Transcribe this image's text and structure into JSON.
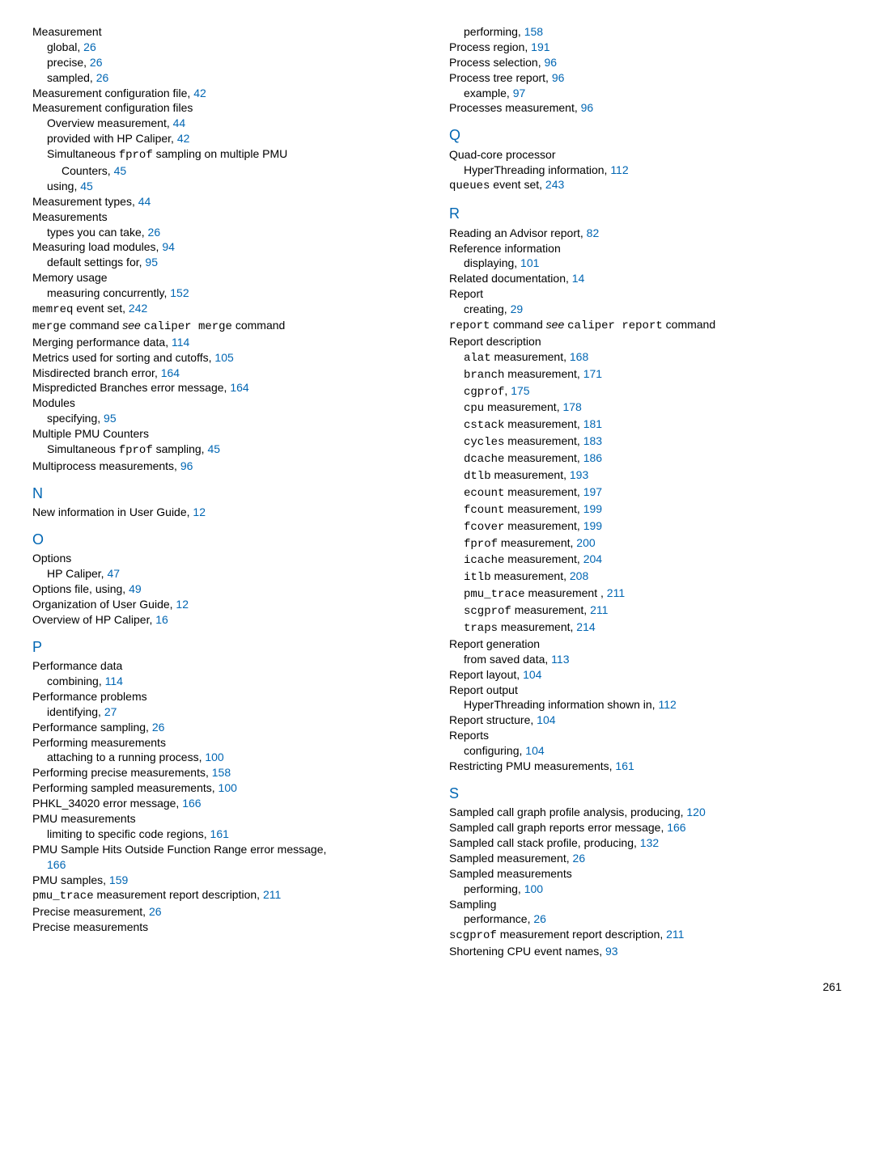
{
  "left": [
    {
      "t": "e",
      "cls": "entry",
      "parts": [
        {
          "txt": "Measurement"
        }
      ]
    },
    {
      "t": "e",
      "cls": "sub1",
      "parts": [
        {
          "txt": "global, "
        },
        {
          "link": "26"
        }
      ]
    },
    {
      "t": "e",
      "cls": "sub1",
      "parts": [
        {
          "txt": "precise, "
        },
        {
          "link": "26"
        }
      ]
    },
    {
      "t": "e",
      "cls": "sub1",
      "parts": [
        {
          "txt": "sampled, "
        },
        {
          "link": "26"
        }
      ]
    },
    {
      "t": "e",
      "cls": "entry",
      "parts": [
        {
          "txt": "Measurement configuration file, "
        },
        {
          "link": "42"
        }
      ]
    },
    {
      "t": "e",
      "cls": "entry",
      "parts": [
        {
          "txt": "Measurement configuration files"
        }
      ]
    },
    {
      "t": "e",
      "cls": "sub1",
      "parts": [
        {
          "txt": "Overview measurement, "
        },
        {
          "link": "44"
        }
      ]
    },
    {
      "t": "e",
      "cls": "sub1",
      "parts": [
        {
          "txt": "provided with HP Caliper, "
        },
        {
          "link": "42"
        }
      ]
    },
    {
      "t": "e",
      "cls": "sub1",
      "parts": [
        {
          "txt": "Simultaneous "
        },
        {
          "mono": "fprof"
        },
        {
          "txt": " sampling on multiple PMU"
        }
      ]
    },
    {
      "t": "e",
      "cls": "sub2",
      "parts": [
        {
          "txt": "Counters, "
        },
        {
          "link": "45"
        }
      ]
    },
    {
      "t": "e",
      "cls": "sub1",
      "parts": [
        {
          "txt": "using, "
        },
        {
          "link": "45"
        }
      ]
    },
    {
      "t": "e",
      "cls": "entry",
      "parts": [
        {
          "txt": "Measurement types, "
        },
        {
          "link": "44"
        }
      ]
    },
    {
      "t": "e",
      "cls": "entry",
      "parts": [
        {
          "txt": "Measurements"
        }
      ]
    },
    {
      "t": "e",
      "cls": "sub1",
      "parts": [
        {
          "txt": "types you can take, "
        },
        {
          "link": "26"
        }
      ]
    },
    {
      "t": "e",
      "cls": "entry",
      "parts": [
        {
          "txt": "Measuring load modules, "
        },
        {
          "link": "94"
        }
      ]
    },
    {
      "t": "e",
      "cls": "sub1",
      "parts": [
        {
          "txt": "default settings for, "
        },
        {
          "link": "95"
        }
      ]
    },
    {
      "t": "e",
      "cls": "entry",
      "parts": [
        {
          "txt": "Memory usage"
        }
      ]
    },
    {
      "t": "e",
      "cls": "sub1",
      "parts": [
        {
          "txt": "measuring concurrently, "
        },
        {
          "link": "152"
        }
      ]
    },
    {
      "t": "e",
      "cls": "entry",
      "parts": [
        {
          "mono": "memreq"
        },
        {
          "txt": " event set, "
        },
        {
          "link": "242"
        }
      ]
    },
    {
      "t": "e",
      "cls": "entry",
      "parts": [
        {
          "mono": "merge"
        },
        {
          "txt": " command "
        },
        {
          "it": "see"
        },
        {
          "txt": " "
        },
        {
          "mono": "caliper merge"
        },
        {
          "txt": " command"
        }
      ]
    },
    {
      "t": "e",
      "cls": "entry",
      "parts": [
        {
          "txt": "Merging performance data, "
        },
        {
          "link": "114"
        }
      ]
    },
    {
      "t": "e",
      "cls": "entry",
      "parts": [
        {
          "txt": "Metrics used for sorting and cutoffs, "
        },
        {
          "link": "105"
        }
      ]
    },
    {
      "t": "e",
      "cls": "entry",
      "parts": [
        {
          "txt": "Misdirected branch error, "
        },
        {
          "link": "164"
        }
      ]
    },
    {
      "t": "e",
      "cls": "entry",
      "parts": [
        {
          "txt": "Mispredicted Branches error message, "
        },
        {
          "link": "164"
        }
      ]
    },
    {
      "t": "e",
      "cls": "entry",
      "parts": [
        {
          "txt": "Modules"
        }
      ]
    },
    {
      "t": "e",
      "cls": "sub1",
      "parts": [
        {
          "txt": "specifying, "
        },
        {
          "link": "95"
        }
      ]
    },
    {
      "t": "e",
      "cls": "entry",
      "parts": [
        {
          "txt": "Multiple PMU Counters"
        }
      ]
    },
    {
      "t": "e",
      "cls": "sub1",
      "parts": [
        {
          "txt": "Simultaneous "
        },
        {
          "mono": "fprof"
        },
        {
          "txt": " sampling, "
        },
        {
          "link": "45"
        }
      ]
    },
    {
      "t": "e",
      "cls": "entry",
      "parts": [
        {
          "txt": "Multiprocess measurements, "
        },
        {
          "link": "96"
        }
      ]
    },
    {
      "t": "h",
      "txt": "N"
    },
    {
      "t": "e",
      "cls": "entry",
      "parts": [
        {
          "txt": "New information in User Guide, "
        },
        {
          "link": "12"
        }
      ]
    },
    {
      "t": "h",
      "txt": "O"
    },
    {
      "t": "e",
      "cls": "entry",
      "parts": [
        {
          "txt": "Options"
        }
      ]
    },
    {
      "t": "e",
      "cls": "sub1",
      "parts": [
        {
          "txt": "HP Caliper, "
        },
        {
          "link": "47"
        }
      ]
    },
    {
      "t": "e",
      "cls": "entry",
      "parts": [
        {
          "txt": "Options file, using, "
        },
        {
          "link": "49"
        }
      ]
    },
    {
      "t": "e",
      "cls": "entry",
      "parts": [
        {
          "txt": "Organization of User Guide, "
        },
        {
          "link": "12"
        }
      ]
    },
    {
      "t": "e",
      "cls": "entry",
      "parts": [
        {
          "txt": "Overview of HP Caliper, "
        },
        {
          "link": "16"
        }
      ]
    },
    {
      "t": "h",
      "txt": "P"
    },
    {
      "t": "e",
      "cls": "entry",
      "parts": [
        {
          "txt": "Performance data"
        }
      ]
    },
    {
      "t": "e",
      "cls": "sub1",
      "parts": [
        {
          "txt": "combining, "
        },
        {
          "link": "114"
        }
      ]
    },
    {
      "t": "e",
      "cls": "entry",
      "parts": [
        {
          "txt": "Performance problems"
        }
      ]
    },
    {
      "t": "e",
      "cls": "sub1",
      "parts": [
        {
          "txt": "identifying, "
        },
        {
          "link": "27"
        }
      ]
    },
    {
      "t": "e",
      "cls": "entry",
      "parts": [
        {
          "txt": "Performance sampling, "
        },
        {
          "link": "26"
        }
      ]
    },
    {
      "t": "e",
      "cls": "entry",
      "parts": [
        {
          "txt": "Performing measurements"
        }
      ]
    },
    {
      "t": "e",
      "cls": "sub1",
      "parts": [
        {
          "txt": "attaching to a running process, "
        },
        {
          "link": "100"
        }
      ]
    },
    {
      "t": "e",
      "cls": "entry",
      "parts": [
        {
          "txt": "Performing precise measurements, "
        },
        {
          "link": "158"
        }
      ]
    },
    {
      "t": "e",
      "cls": "entry",
      "parts": [
        {
          "txt": "Performing sampled measurements, "
        },
        {
          "link": "100"
        }
      ]
    },
    {
      "t": "e",
      "cls": "entry",
      "parts": [
        {
          "txt": "PHKL_34020 error message, "
        },
        {
          "link": "166"
        }
      ]
    },
    {
      "t": "e",
      "cls": "entry",
      "parts": [
        {
          "txt": "PMU measurements"
        }
      ]
    },
    {
      "t": "e",
      "cls": "sub1",
      "parts": [
        {
          "txt": "limiting to specific code regions, "
        },
        {
          "link": "161"
        }
      ]
    },
    {
      "t": "e",
      "cls": "entry",
      "parts": [
        {
          "txt": "PMU Sample Hits Outside Function Range error message,"
        }
      ]
    },
    {
      "t": "e",
      "cls": "sub1",
      "parts": [
        {
          "link": "166"
        }
      ]
    },
    {
      "t": "e",
      "cls": "entry",
      "parts": [
        {
          "txt": "PMU samples, "
        },
        {
          "link": "159"
        }
      ]
    },
    {
      "t": "e",
      "cls": "entry",
      "parts": [
        {
          "mono": "pmu_trace"
        },
        {
          "txt": " measurement report description, "
        },
        {
          "link": "211"
        }
      ]
    },
    {
      "t": "e",
      "cls": "entry",
      "parts": [
        {
          "txt": "Precise measurement, "
        },
        {
          "link": "26"
        }
      ]
    },
    {
      "t": "e",
      "cls": "entry",
      "parts": [
        {
          "txt": "Precise measurements"
        }
      ]
    }
  ],
  "right": [
    {
      "t": "e",
      "cls": "sub1",
      "parts": [
        {
          "txt": "performing, "
        },
        {
          "link": "158"
        }
      ]
    },
    {
      "t": "e",
      "cls": "entry",
      "parts": [
        {
          "txt": "Process region, "
        },
        {
          "link": "191"
        }
      ]
    },
    {
      "t": "e",
      "cls": "entry",
      "parts": [
        {
          "txt": "Process selection, "
        },
        {
          "link": "96"
        }
      ]
    },
    {
      "t": "e",
      "cls": "entry",
      "parts": [
        {
          "txt": "Process tree report, "
        },
        {
          "link": "96"
        }
      ]
    },
    {
      "t": "e",
      "cls": "sub1",
      "parts": [
        {
          "txt": "example, "
        },
        {
          "link": "97"
        }
      ]
    },
    {
      "t": "e",
      "cls": "entry",
      "parts": [
        {
          "txt": "Processes measurement, "
        },
        {
          "link": "96"
        }
      ]
    },
    {
      "t": "h",
      "txt": "Q"
    },
    {
      "t": "e",
      "cls": "entry",
      "parts": [
        {
          "txt": "Quad-core processor"
        }
      ]
    },
    {
      "t": "e",
      "cls": "sub1",
      "parts": [
        {
          "txt": "HyperThreading information, "
        },
        {
          "link": "112"
        }
      ]
    },
    {
      "t": "e",
      "cls": "entry",
      "parts": [
        {
          "mono": "queues"
        },
        {
          "txt": " event set, "
        },
        {
          "link": "243"
        }
      ]
    },
    {
      "t": "h",
      "txt": "R"
    },
    {
      "t": "e",
      "cls": "entry",
      "parts": [
        {
          "txt": "Reading an Advisor report, "
        },
        {
          "link": "82"
        }
      ]
    },
    {
      "t": "e",
      "cls": "entry",
      "parts": [
        {
          "txt": "Reference information"
        }
      ]
    },
    {
      "t": "e",
      "cls": "sub1",
      "parts": [
        {
          "txt": "displaying, "
        },
        {
          "link": "101"
        }
      ]
    },
    {
      "t": "e",
      "cls": "entry",
      "parts": [
        {
          "txt": "Related documentation, "
        },
        {
          "link": "14"
        }
      ]
    },
    {
      "t": "e",
      "cls": "entry",
      "parts": [
        {
          "txt": "Report"
        }
      ]
    },
    {
      "t": "e",
      "cls": "sub1",
      "parts": [
        {
          "txt": "creating, "
        },
        {
          "link": "29"
        }
      ]
    },
    {
      "t": "e",
      "cls": "entry",
      "parts": [
        {
          "mono": "report"
        },
        {
          "txt": " command "
        },
        {
          "it": "see"
        },
        {
          "txt": " "
        },
        {
          "mono": "caliper report"
        },
        {
          "txt": " command"
        }
      ]
    },
    {
      "t": "e",
      "cls": "entry",
      "parts": [
        {
          "txt": "Report description"
        }
      ]
    },
    {
      "t": "e",
      "cls": "sub1",
      "parts": [
        {
          "mono": "alat"
        },
        {
          "txt": " measurement, "
        },
        {
          "link": "168"
        }
      ]
    },
    {
      "t": "e",
      "cls": "sub1",
      "parts": [
        {
          "mono": "branch"
        },
        {
          "txt": " measurement, "
        },
        {
          "link": "171"
        }
      ]
    },
    {
      "t": "e",
      "cls": "sub1",
      "parts": [
        {
          "mono": "cgprof"
        },
        {
          "txt": ", "
        },
        {
          "link": "175"
        }
      ]
    },
    {
      "t": "e",
      "cls": "sub1",
      "parts": [
        {
          "mono": "cpu"
        },
        {
          "txt": " measurement, "
        },
        {
          "link": "178"
        }
      ]
    },
    {
      "t": "e",
      "cls": "sub1",
      "parts": [
        {
          "mono": "cstack"
        },
        {
          "txt": " measurement, "
        },
        {
          "link": "181"
        }
      ]
    },
    {
      "t": "e",
      "cls": "sub1",
      "parts": [
        {
          "mono": "cycles"
        },
        {
          "txt": " measurement, "
        },
        {
          "link": "183"
        }
      ]
    },
    {
      "t": "e",
      "cls": "sub1",
      "parts": [
        {
          "mono": "dcache"
        },
        {
          "txt": " measurement, "
        },
        {
          "link": "186"
        }
      ]
    },
    {
      "t": "e",
      "cls": "sub1",
      "parts": [
        {
          "mono": "dtlb"
        },
        {
          "txt": " measurement, "
        },
        {
          "link": "193"
        }
      ]
    },
    {
      "t": "e",
      "cls": "sub1",
      "parts": [
        {
          "mono": "ecount"
        },
        {
          "txt": " measurement, "
        },
        {
          "link": "197"
        }
      ]
    },
    {
      "t": "e",
      "cls": "sub1",
      "parts": [
        {
          "mono": "fcount"
        },
        {
          "txt": " measurement, "
        },
        {
          "link": "199"
        }
      ]
    },
    {
      "t": "e",
      "cls": "sub1",
      "parts": [
        {
          "mono": "fcover"
        },
        {
          "txt": " measurement, "
        },
        {
          "link": "199"
        }
      ]
    },
    {
      "t": "e",
      "cls": "sub1",
      "parts": [
        {
          "mono": "fprof"
        },
        {
          "txt": " measurement, "
        },
        {
          "link": "200"
        }
      ]
    },
    {
      "t": "e",
      "cls": "sub1",
      "parts": [
        {
          "mono": "icache"
        },
        {
          "txt": " measurement, "
        },
        {
          "link": "204"
        }
      ]
    },
    {
      "t": "e",
      "cls": "sub1",
      "parts": [
        {
          "mono": "itlb"
        },
        {
          "txt": " measurement, "
        },
        {
          "link": "208"
        }
      ]
    },
    {
      "t": "e",
      "cls": "sub1",
      "parts": [
        {
          "mono": "pmu_trace"
        },
        {
          "txt": " measurement , "
        },
        {
          "link": "211"
        }
      ]
    },
    {
      "t": "e",
      "cls": "sub1",
      "parts": [
        {
          "mono": "scgprof"
        },
        {
          "txt": " measurement, "
        },
        {
          "link": "211"
        }
      ]
    },
    {
      "t": "e",
      "cls": "sub1",
      "parts": [
        {
          "mono": "traps"
        },
        {
          "txt": " measurement, "
        },
        {
          "link": "214"
        }
      ]
    },
    {
      "t": "e",
      "cls": "entry",
      "parts": [
        {
          "txt": "Report generation"
        }
      ]
    },
    {
      "t": "e",
      "cls": "sub1",
      "parts": [
        {
          "txt": "from saved data, "
        },
        {
          "link": "113"
        }
      ]
    },
    {
      "t": "e",
      "cls": "entry",
      "parts": [
        {
          "txt": "Report layout, "
        },
        {
          "link": "104"
        }
      ]
    },
    {
      "t": "e",
      "cls": "entry",
      "parts": [
        {
          "txt": "Report output"
        }
      ]
    },
    {
      "t": "e",
      "cls": "sub1",
      "parts": [
        {
          "txt": "HyperThreading information shown in, "
        },
        {
          "link": "112"
        }
      ]
    },
    {
      "t": "e",
      "cls": "entry",
      "parts": [
        {
          "txt": "Report structure, "
        },
        {
          "link": "104"
        }
      ]
    },
    {
      "t": "e",
      "cls": "entry",
      "parts": [
        {
          "txt": "Reports"
        }
      ]
    },
    {
      "t": "e",
      "cls": "sub1",
      "parts": [
        {
          "txt": "configuring, "
        },
        {
          "link": "104"
        }
      ]
    },
    {
      "t": "e",
      "cls": "entry",
      "parts": [
        {
          "txt": "Restricting PMU measurements, "
        },
        {
          "link": "161"
        }
      ]
    },
    {
      "t": "h",
      "txt": "S"
    },
    {
      "t": "e",
      "cls": "entry",
      "parts": [
        {
          "txt": "Sampled call graph profile analysis, producing, "
        },
        {
          "link": "120"
        }
      ]
    },
    {
      "t": "e",
      "cls": "entry",
      "parts": [
        {
          "txt": "Sampled call graph reports error message, "
        },
        {
          "link": "166"
        }
      ]
    },
    {
      "t": "e",
      "cls": "entry",
      "parts": [
        {
          "txt": "Sampled call stack profile, producing, "
        },
        {
          "link": "132"
        }
      ]
    },
    {
      "t": "e",
      "cls": "entry",
      "parts": [
        {
          "txt": "Sampled measurement, "
        },
        {
          "link": "26"
        }
      ]
    },
    {
      "t": "e",
      "cls": "entry",
      "parts": [
        {
          "txt": "Sampled measurements"
        }
      ]
    },
    {
      "t": "e",
      "cls": "sub1",
      "parts": [
        {
          "txt": "performing, "
        },
        {
          "link": "100"
        }
      ]
    },
    {
      "t": "e",
      "cls": "entry",
      "parts": [
        {
          "txt": "Sampling"
        }
      ]
    },
    {
      "t": "e",
      "cls": "sub1",
      "parts": [
        {
          "txt": "performance, "
        },
        {
          "link": "26"
        }
      ]
    },
    {
      "t": "e",
      "cls": "entry",
      "parts": [
        {
          "mono": "scgprof"
        },
        {
          "txt": " measurement report description, "
        },
        {
          "link": "211"
        }
      ]
    },
    {
      "t": "e",
      "cls": "entry",
      "parts": [
        {
          "txt": "Shortening CPU event names, "
        },
        {
          "link": "93"
        }
      ]
    }
  ],
  "pagenum": "261"
}
